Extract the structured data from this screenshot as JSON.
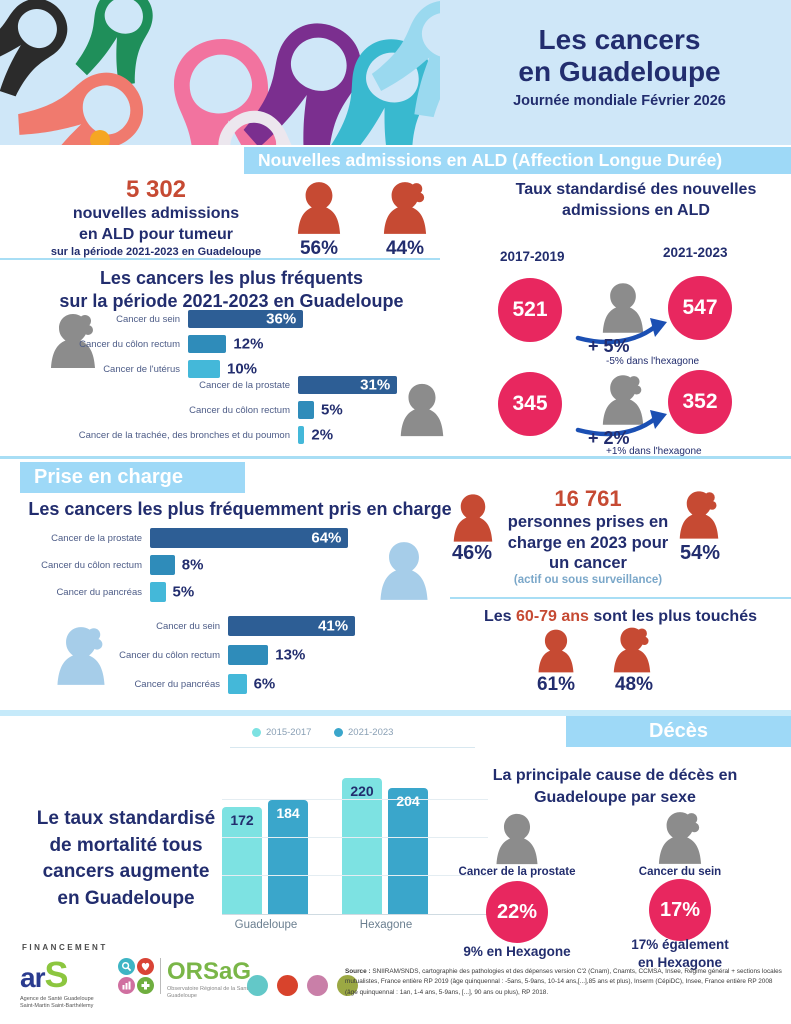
{
  "header": {
    "title1": "Les cancers",
    "title2": "en Guadeloupe",
    "subtitle": "Journée mondiale  Février 2026"
  },
  "admissions": {
    "banner": "Nouvelles admissions en ALD (Affection Longue Durée)",
    "count": "5 302",
    "count_line1": "nouvelles admissions",
    "count_line2": "en ALD pour tumeur",
    "count_sub": "sur la période 2021-2023 en Guadeloupe",
    "male_share": "56%",
    "female_share": "44%",
    "rates_title1": "Taux standardisé des nouvelles",
    "rates_title2": "admissions en ALD",
    "period_before": "2017-2019",
    "period_after": "2021-2023",
    "men": {
      "before": "521",
      "after": "547",
      "change": "+ 5%",
      "note": "-5% dans l'hexagone"
    },
    "women": {
      "before": "345",
      "after": "352",
      "change": "+ 2%",
      "note": "+1% dans l'hexagone"
    },
    "freq_title1": "Les cancers les plus fréquents",
    "freq_title2": "sur la période 2021-2023 en Guadeloupe"
  },
  "care": {
    "banner": "Prise en charge",
    "title": "Les cancers les plus fréquemment pris en charge",
    "count": "16 761",
    "count_line1": "personnes prises en",
    "count_line2": "charge en 2023 pour",
    "count_line3": "un cancer",
    "count_sub": "(actif ou sous surveillance)",
    "male_share": "46%",
    "female_share": "54%",
    "age_pre": "Les ",
    "age_red": "60-79 ans",
    "age_post": " sont les plus touchés",
    "age_male": "61%",
    "age_female": "48%"
  },
  "deaths": {
    "banner": "Décès",
    "mort_line1": "Le taux standardisé",
    "mort_line2": "de mortalité tous",
    "mort_line3": "cancers augmente",
    "mort_line4": "en Guadeloupe",
    "cause_title1": "La principale cause de décès en",
    "cause_title2": "Guadeloupe par sexe",
    "male_cause": "Cancer de la prostate",
    "male_pct": "22%",
    "male_note": "9% en Hexagone",
    "female_cause": "Cancer du sein",
    "female_pct": "17%",
    "female_note1": "17% également",
    "female_note2": "en Hexagone"
  },
  "footer": {
    "financement": "FINANCEMENT",
    "ars_ar": "ar",
    "ars_s": "S",
    "ars_sub": "Agence de Santé Guadeloupe Saint-Martin Saint-Barthélemy",
    "orsag_name": "ORSaG",
    "orsag_sub": "Observatoire Régional de la Santé de Guadeloupe",
    "source_label": "Source :",
    "source_text": " SNIIRAM/SNDS, cartographie des pathologies et des dépenses version C'2 (Cnam), Cnamts, CCMSA, Insee, Régime général + sections locales mutualistes, France entière RP 2019 (âge quinquennal : -5ans, 5-9ans, 10-14 ans,[...],85 ans et plus), Inserm (CépiDC), Insee, France entière RP 2008 (âge quinquennal : 1an, 1-4 ans, 5-9ans, [...], 90 ans ou plus), RP 2018."
  },
  "colors": {
    "accent_red": "#c64a33",
    "pink_circle": "#e8275f",
    "navy": "#222d6e",
    "banner_blue": "#9ed9f7",
    "bar_dark": "#2d5e95",
    "bar_mid": "#2f8cba",
    "bar_light": "#44b8d9",
    "mortality_light": "#7de2e2",
    "mortality_dark": "#3aa6cb"
  },
  "chart_data": [
    {
      "type": "bar",
      "group": "femmes",
      "title": "Les cancers les plus fréquents sur la période 2021-2023 en Guadeloupe",
      "unit": "%",
      "categories": [
        "Cancer du sein",
        "Cancer du côlon rectum",
        "Cancer de l'utérus"
      ],
      "values": [
        36,
        12,
        10
      ]
    },
    {
      "type": "bar",
      "group": "hommes",
      "title": "Les cancers les plus fréquents sur la période 2021-2023 en Guadeloupe",
      "unit": "%",
      "categories": [
        "Cancer de la prostate",
        "Cancer du côlon rectum",
        "Cancer de la trachée, des bronches et du poumon"
      ],
      "values": [
        31,
        5,
        2
      ]
    },
    {
      "type": "bar",
      "group": "hommes",
      "title": "Les cancers les plus fréquemment pris en charge",
      "unit": "%",
      "categories": [
        "Cancer de la prostate",
        "Cancer du côlon rectum",
        "Cancer du pancréas"
      ],
      "values": [
        64,
        8,
        5
      ]
    },
    {
      "type": "bar",
      "group": "femmes",
      "title": "Les cancers les plus fréquemment pris en charge",
      "unit": "%",
      "categories": [
        "Cancer du sein",
        "Cancer du côlon rectum",
        "Cancer du pancréas"
      ],
      "values": [
        41,
        13,
        6
      ]
    },
    {
      "type": "bar",
      "grouped": true,
      "title": "Le taux standardisé de mortalité tous cancers augmente en Guadeloupe",
      "categories": [
        "Guadeloupe",
        "Hexagone"
      ],
      "legend_position": "top",
      "series": [
        {
          "name": "2015-2017",
          "values": [
            172,
            220
          ]
        },
        {
          "name": "2021-2023",
          "values": [
            184,
            204
          ]
        }
      ]
    },
    {
      "type": "comparison",
      "title": "Taux standardisé des nouvelles admissions en ALD",
      "categories": [
        "2017-2019",
        "2021-2023"
      ],
      "series": [
        {
          "name": "hommes",
          "values": [
            521,
            547
          ],
          "change": "+ 5%",
          "hexagone": "-5% dans l'hexagone"
        },
        {
          "name": "femmes",
          "values": [
            345,
            352
          ],
          "change": "+ 2%",
          "hexagone": "+1% dans l'hexagone"
        }
      ]
    }
  ]
}
